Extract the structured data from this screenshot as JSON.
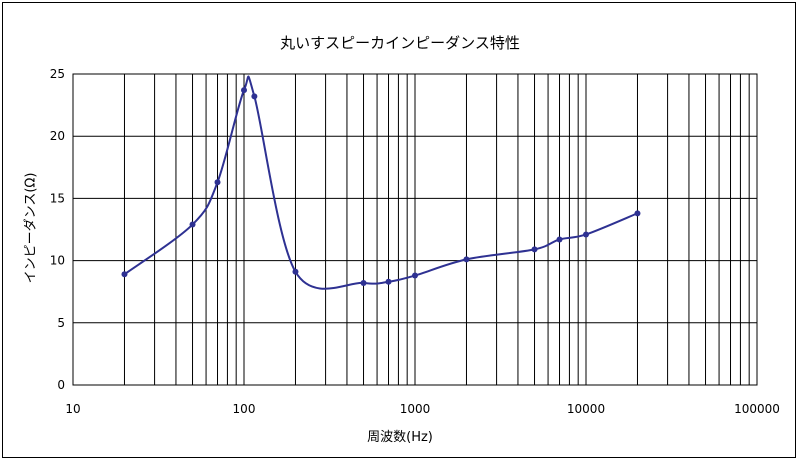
{
  "chart_data": {
    "type": "line",
    "title": "丸いすスピーカインピーダンス特性",
    "xlabel": "周波数(Hz)",
    "ylabel": "インピーダンス(Ω)",
    "x_scale": "log",
    "xlim": [
      10,
      100000
    ],
    "ylim": [
      0,
      25
    ],
    "x_ticks": [
      10,
      100,
      1000,
      10000,
      100000
    ],
    "x_tick_labels": [
      "10",
      "100",
      "1000",
      "10000",
      "100000"
    ],
    "y_ticks": [
      0,
      5,
      10,
      15,
      20,
      25
    ],
    "y_tick_labels": [
      "0",
      "5",
      "10",
      "15",
      "20",
      "25"
    ],
    "grid": true,
    "legend": "none",
    "line_color": "#2e3192",
    "series": [
      {
        "x": [
          20,
          50,
          70,
          100,
          115,
          200,
          500,
          700,
          1000,
          2000,
          5000,
          7000,
          10000,
          20000
        ],
        "values": [
          8.9,
          12.9,
          16.3,
          23.7,
          23.2,
          9.1,
          8.2,
          8.3,
          8.8,
          10.1,
          10.9,
          11.7,
          12.1,
          13.8
        ]
      }
    ]
  }
}
